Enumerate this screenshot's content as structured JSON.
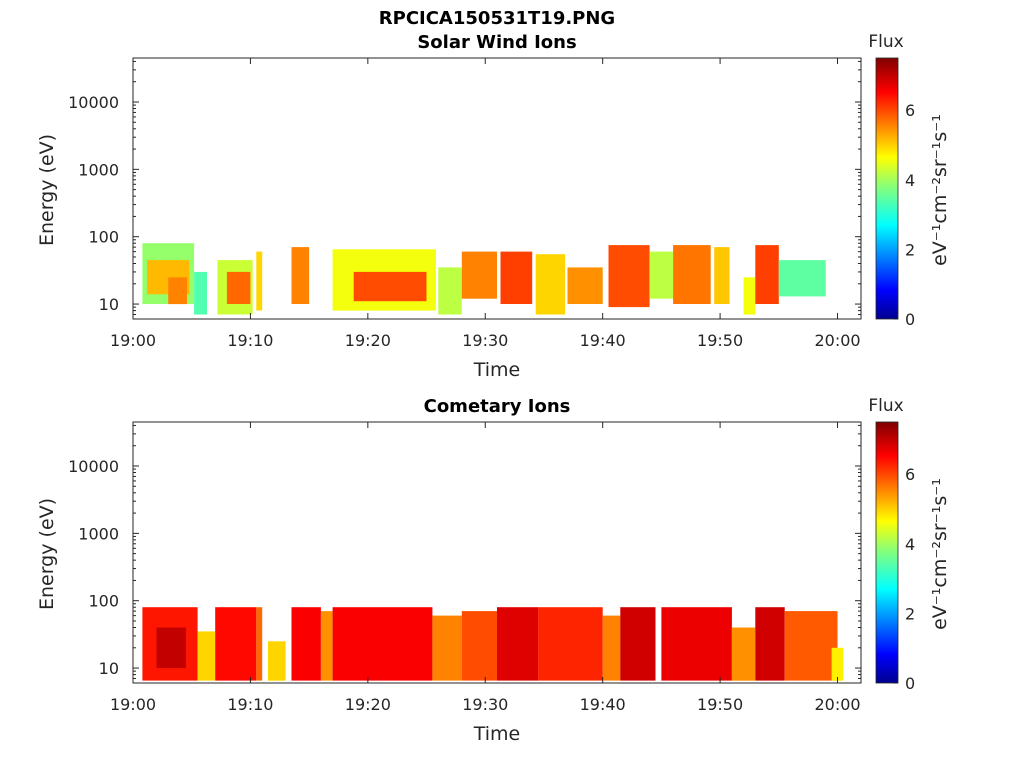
{
  "figure": {
    "main_title": "RPCICA150531T19.PNG"
  },
  "chart_data": [
    {
      "type": "heatmap",
      "title": "Solar Wind Ions",
      "xlabel": "Time",
      "ylabel": "Energy (eV)",
      "x_ticks": [
        "19:00",
        "19:10",
        "19:20",
        "19:30",
        "19:40",
        "19:50",
        "20:00"
      ],
      "x_range_minutes": [
        0,
        62
      ],
      "y_scale": "log",
      "y_ticks": [
        "10",
        "100",
        "1000",
        "10000"
      ],
      "y_range": [
        6,
        45000
      ],
      "colorbar": {
        "title": "Flux",
        "label": "eV⁻¹cm⁻²sr⁻¹s⁻¹",
        "ticks": [
          "0",
          "2",
          "4",
          "6"
        ],
        "range": [
          0,
          7.5
        ],
        "colormap": "jet"
      },
      "flux_columns": [
        {
          "t": [
            0.8,
            5.2
          ],
          "e": [
            10,
            80
          ],
          "flux": 3.9
        },
        {
          "t": [
            1.2,
            4.8
          ],
          "e": [
            14,
            45
          ],
          "flux": 5.2
        },
        {
          "t": [
            3.0,
            4.6
          ],
          "e": [
            10,
            25
          ],
          "flux": 5.6
        },
        {
          "t": [
            5.2,
            6.3
          ],
          "e": [
            7,
            30
          ],
          "flux": 3.4
        },
        {
          "t": [
            7.2,
            10.2
          ],
          "e": [
            7,
            45
          ],
          "flux": 4.3
        },
        {
          "t": [
            8.0,
            10.0
          ],
          "e": [
            10,
            30
          ],
          "flux": 5.8
        },
        {
          "t": [
            10.5,
            11.0
          ],
          "e": [
            8,
            60
          ],
          "flux": 5.0
        },
        {
          "t": [
            13.5,
            15.0
          ],
          "e": [
            10,
            70
          ],
          "flux": 5.6
        },
        {
          "t": [
            17.0,
            25.8
          ],
          "e": [
            8,
            65
          ],
          "flux": 4.6
        },
        {
          "t": [
            18.8,
            25.0
          ],
          "e": [
            11,
            30
          ],
          "flux": 6.0
        },
        {
          "t": [
            26.0,
            28.0
          ],
          "e": [
            7,
            35
          ],
          "flux": 4.2
        },
        {
          "t": [
            28.0,
            31.0
          ],
          "e": [
            12,
            60
          ],
          "flux": 5.6
        },
        {
          "t": [
            31.3,
            34.0
          ],
          "e": [
            10,
            60
          ],
          "flux": 6.1
        },
        {
          "t": [
            34.3,
            36.8
          ],
          "e": [
            7,
            55
          ],
          "flux": 5.0
        },
        {
          "t": [
            37.0,
            40.0
          ],
          "e": [
            10,
            35
          ],
          "flux": 5.5
        },
        {
          "t": [
            40.5,
            44.0
          ],
          "e": [
            9,
            75
          ],
          "flux": 6.0
        },
        {
          "t": [
            44.0,
            46.0
          ],
          "e": [
            12,
            60
          ],
          "flux": 4.2
        },
        {
          "t": [
            46.0,
            49.2
          ],
          "e": [
            10,
            75
          ],
          "flux": 5.7
        },
        {
          "t": [
            49.5,
            50.8
          ],
          "e": [
            10,
            70
          ],
          "flux": 5.1
        },
        {
          "t": [
            52.0,
            53.0
          ],
          "e": [
            7,
            25
          ],
          "flux": 4.6
        },
        {
          "t": [
            53.0,
            55.0
          ],
          "e": [
            10,
            75
          ],
          "flux": 6.1
        },
        {
          "t": [
            55.0,
            59.0
          ],
          "e": [
            13,
            45
          ],
          "flux": 3.5
        }
      ]
    },
    {
      "type": "heatmap",
      "title": "Cometary Ions",
      "xlabel": "Time",
      "ylabel": "Energy (eV)",
      "x_ticks": [
        "19:00",
        "19:10",
        "19:20",
        "19:30",
        "19:40",
        "19:50",
        "20:00"
      ],
      "x_range_minutes": [
        0,
        62
      ],
      "y_scale": "log",
      "y_ticks": [
        "10",
        "100",
        "1000",
        "10000"
      ],
      "y_range": [
        6,
        45000
      ],
      "colorbar": {
        "title": "Flux",
        "label": "eV⁻¹cm⁻²sr⁻¹s⁻¹",
        "ticks": [
          "0",
          "2",
          "4",
          "6"
        ],
        "range": [
          0,
          7.5
        ],
        "colormap": "jet"
      },
      "flux_columns": [
        {
          "t": [
            0.8,
            5.5
          ],
          "e": [
            6.5,
            80
          ],
          "flux": 6.4
        },
        {
          "t": [
            2.0,
            4.5
          ],
          "e": [
            10,
            40
          ],
          "flux": 7.0
        },
        {
          "t": [
            5.5,
            7.0
          ],
          "e": [
            6.5,
            35
          ],
          "flux": 5.0
        },
        {
          "t": [
            7.0,
            10.5
          ],
          "e": [
            6.5,
            80
          ],
          "flux": 6.5
        },
        {
          "t": [
            10.5,
            11.0
          ],
          "e": [
            6.5,
            80
          ],
          "flux": 5.8
        },
        {
          "t": [
            11.5,
            13.0
          ],
          "e": [
            6.5,
            25
          ],
          "flux": 5.0
        },
        {
          "t": [
            13.5,
            16.0
          ],
          "e": [
            6.5,
            80
          ],
          "flux": 6.6
        },
        {
          "t": [
            16.0,
            17.0
          ],
          "e": [
            6.5,
            70
          ],
          "flux": 5.5
        },
        {
          "t": [
            17.0,
            25.5
          ],
          "e": [
            6.5,
            80
          ],
          "flux": 6.6
        },
        {
          "t": [
            25.5,
            28.0
          ],
          "e": [
            6.5,
            60
          ],
          "flux": 5.6
        },
        {
          "t": [
            28.0,
            31.0
          ],
          "e": [
            6.5,
            70
          ],
          "flux": 6.0
        },
        {
          "t": [
            31.0,
            34.5
          ],
          "e": [
            6.5,
            80
          ],
          "flux": 6.8
        },
        {
          "t": [
            34.5,
            40.0
          ],
          "e": [
            6.5,
            80
          ],
          "flux": 6.3
        },
        {
          "t": [
            40.0,
            41.5
          ],
          "e": [
            6.5,
            60
          ],
          "flux": 5.6
        },
        {
          "t": [
            41.5,
            44.5
          ],
          "e": [
            6.5,
            80
          ],
          "flux": 6.9
        },
        {
          "t": [
            45.0,
            51.0
          ],
          "e": [
            6.5,
            80
          ],
          "flux": 6.7
        },
        {
          "t": [
            51.0,
            53.0
          ],
          "e": [
            6.5,
            40
          ],
          "flux": 5.5
        },
        {
          "t": [
            53.0,
            55.5
          ],
          "e": [
            6.5,
            80
          ],
          "flux": 6.9
        },
        {
          "t": [
            55.5,
            60.0
          ],
          "e": [
            6.5,
            70
          ],
          "flux": 5.9
        },
        {
          "t": [
            59.5,
            60.5
          ],
          "e": [
            6.5,
            20
          ],
          "flux": 4.8
        }
      ]
    }
  ]
}
